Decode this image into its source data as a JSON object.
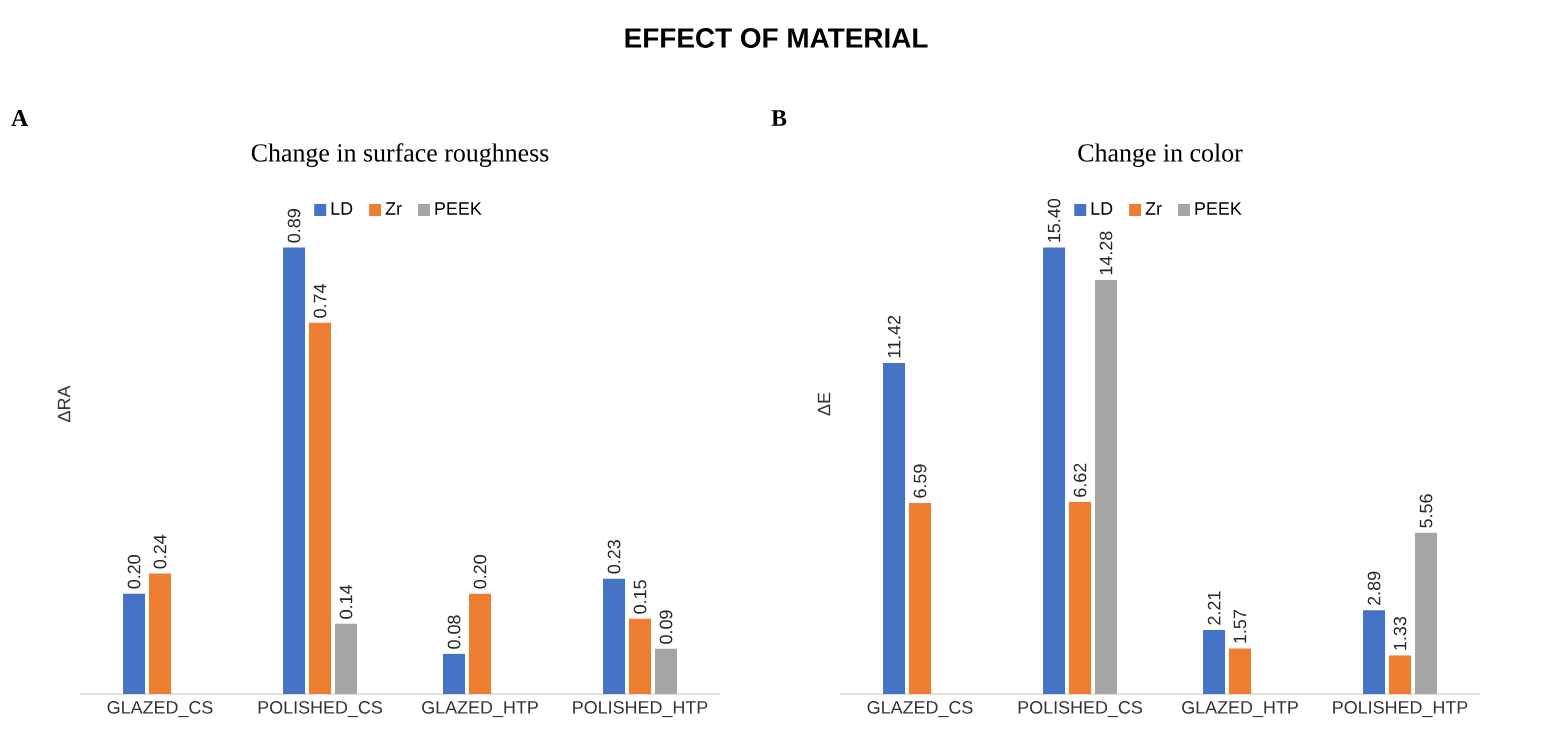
{
  "chart_data": [
    {
      "type": "bar",
      "title": "Change in surface roughness",
      "ylabel": "ΔRA",
      "annotations": [
        "EFFECT OF MATERIAL",
        "A"
      ],
      "categories": [
        "GLAZED_CS",
        "POLISHED_CS",
        "GLAZED_HTP",
        "POLISHED_HTP"
      ],
      "series": [
        {
          "name": "LD",
          "color": "#4472c4",
          "values": [
            0.2,
            0.89,
            0.08,
            0.23
          ],
          "value_labels": [
            "0.20",
            "0.89",
            "0.08",
            "0.23"
          ]
        },
        {
          "name": "Zr",
          "color": "#ed7d31",
          "values": [
            0.24,
            0.74,
            0.2,
            0.15
          ],
          "value_labels": [
            "0.24",
            "0.74",
            "0.20",
            "0.15"
          ]
        },
        {
          "name": "PEEK",
          "color": "#a5a5a5",
          "values": [
            null,
            0.14,
            null,
            0.09
          ],
          "value_labels": [
            null,
            "0.14",
            null,
            "0.09"
          ]
        }
      ],
      "legend": "top"
    },
    {
      "type": "bar",
      "title": "Change in color",
      "ylabel": "ΔE",
      "annotations": [
        "B"
      ],
      "categories": [
        "GLAZED_CS",
        "POLISHED_CS",
        "GLAZED_HTP",
        "POLISHED_HTP"
      ],
      "series": [
        {
          "name": "LD",
          "color": "#4472c4",
          "values": [
            11.42,
            15.4,
            2.21,
            2.89
          ],
          "value_labels": [
            "11.42",
            "15.40",
            "2.21",
            "2.89"
          ]
        },
        {
          "name": "Zr",
          "color": "#ed7d31",
          "values": [
            6.59,
            6.62,
            1.57,
            1.33
          ],
          "value_labels": [
            "6.59",
            "6.62",
            "1.57",
            "1.33"
          ]
        },
        {
          "name": "PEEK",
          "color": "#a5a5a5",
          "values": [
            null,
            14.28,
            null,
            5.56
          ],
          "value_labels": [
            null,
            "14.28",
            null,
            "5.56"
          ]
        }
      ],
      "legend": "top"
    }
  ]
}
